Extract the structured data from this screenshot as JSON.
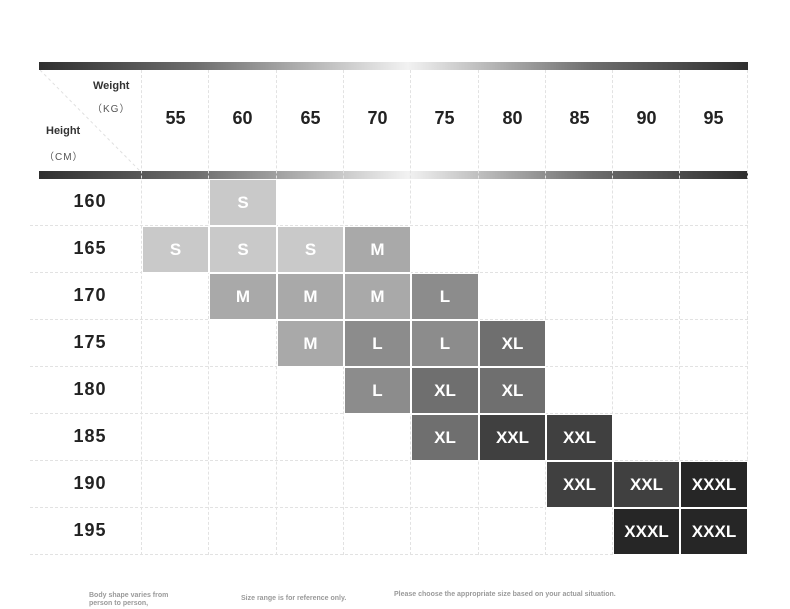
{
  "header": {
    "weight_label": "Weight",
    "weight_unit": "（KG）",
    "height_label": "Height",
    "height_unit": "（CM）"
  },
  "weights": [
    "55",
    "60",
    "65",
    "70",
    "75",
    "80",
    "85",
    "90",
    "95"
  ],
  "heights": [
    "160",
    "165",
    "170",
    "175",
    "180",
    "185",
    "190",
    "195"
  ],
  "sizes": [
    [
      "",
      "S",
      "",
      "",
      "",
      "",
      "",
      "",
      ""
    ],
    [
      "S",
      "S",
      "S",
      "M",
      "",
      "",
      "",
      "",
      ""
    ],
    [
      "",
      "M",
      "M",
      "M",
      "L",
      "",
      "",
      "",
      ""
    ],
    [
      "",
      "",
      "M",
      "L",
      "L",
      "XL",
      "",
      "",
      ""
    ],
    [
      "",
      "",
      "",
      "L",
      "XL",
      "XL",
      "",
      "",
      ""
    ],
    [
      "",
      "",
      "",
      "",
      "XL",
      "XXL",
      "XXL",
      "",
      ""
    ],
    [
      "",
      "",
      "",
      "",
      "",
      "",
      "XXL",
      "XXL",
      "XXXL"
    ],
    [
      "",
      "",
      "",
      "",
      "",
      "",
      "",
      "XXXL",
      "XXXL"
    ]
  ],
  "size_colors": {
    "S": "#c9c9c9",
    "M": "#a9a9a9",
    "L": "#8c8c8c",
    "XL": "#6f6f6f",
    "XXL": "#404040",
    "XXXL": "#262626"
  },
  "notes": {
    "note1_line1": "Body shape varies from",
    "note1_line2": "person to person,",
    "note2": "Size range is for reference only.",
    "note3": "Please choose the appropriate size based on your actual situation."
  }
}
